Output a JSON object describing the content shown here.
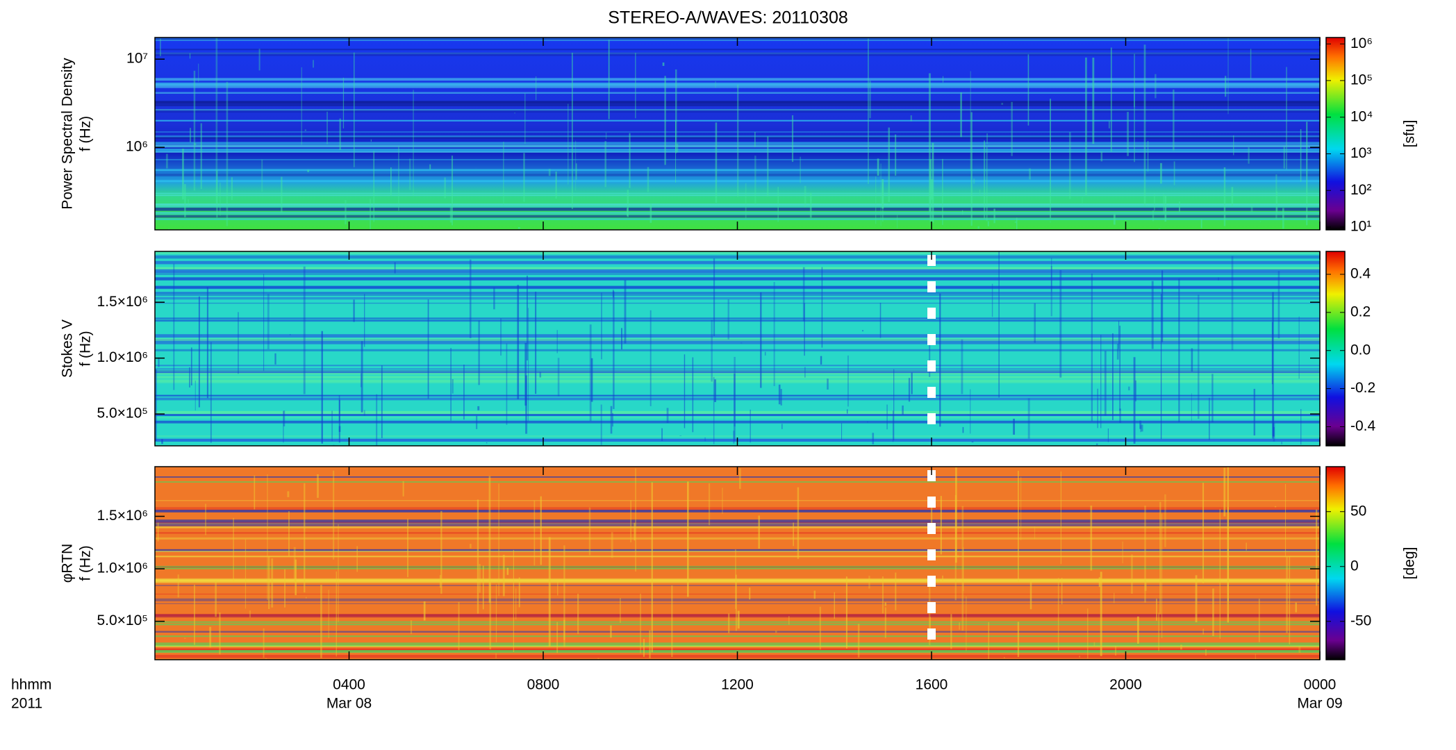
{
  "chart_data": {
    "type": "spectrogram",
    "title": "STEREO-A/WAVES: 20110308",
    "xlabel": "hhmm",
    "xsublabel": "2011",
    "xlim": [
      0,
      24
    ],
    "xticks": [
      {
        "value": 4,
        "label": "0400"
      },
      {
        "value": 8,
        "label": "0800"
      },
      {
        "value": 12,
        "label": "1200"
      },
      {
        "value": 16,
        "label": "1600"
      },
      {
        "value": 20,
        "label": "2000"
      },
      {
        "value": 24,
        "label": "0000"
      }
    ],
    "xdates": [
      {
        "value": 4,
        "label": "Mar 08"
      },
      {
        "value": 24,
        "label": "Mar 09"
      }
    ],
    "panels": [
      {
        "ylabel": "Power Spectral Density",
        "ylabel2": "f (Hz)",
        "ylog": true,
        "ylim": [
          116000,
          17600000
        ],
        "yticks": [
          {
            "value": 1000000,
            "label": "10⁶"
          },
          {
            "value": 10000000,
            "label": "10⁷"
          }
        ],
        "zlog": true,
        "zlim": [
          8.4,
          1500000
        ],
        "zlabel": "[sfu]",
        "zticks": [
          {
            "value": 10,
            "label": "10¹"
          },
          {
            "value": 100,
            "label": "10²"
          },
          {
            "value": 1000,
            "label": "10³"
          },
          {
            "value": 10000,
            "label": "10⁴"
          },
          {
            "value": 100000,
            "label": "10⁵"
          },
          {
            "value": 1000000,
            "label": "10⁶"
          }
        ]
      },
      {
        "ylabel": "Stokes V",
        "ylabel2": "f (Hz)",
        "ylog": false,
        "ylim": [
          215000,
          1955000
        ],
        "yticks": [
          {
            "value": 500000,
            "label": "5.0×10⁵"
          },
          {
            "value": 1000000,
            "label": "1.0×10⁶"
          },
          {
            "value": 1500000,
            "label": "1.5×10⁶"
          }
        ],
        "zlog": false,
        "zlim": [
          -0.5,
          0.52
        ],
        "zticks": [
          -0.4,
          -0.2,
          {
            "value": 0,
            "label": "0.0"
          },
          0.2,
          0.4
        ]
      },
      {
        "ylabel": "φRTN",
        "ylabel2": "f (Hz)",
        "ylog": false,
        "ylim": [
          134000,
          1973000
        ],
        "yticks": [
          {
            "value": 500000,
            "label": "5.0×10⁵"
          },
          {
            "value": 1000000,
            "label": "1.0×10⁶"
          },
          {
            "value": 1500000,
            "label": "1.5×10⁶"
          }
        ],
        "zlog": false,
        "zlim": [
          -85,
          91
        ],
        "zlabel": "[deg]",
        "zticks": [
          -50,
          0,
          50
        ]
      }
    ]
  }
}
